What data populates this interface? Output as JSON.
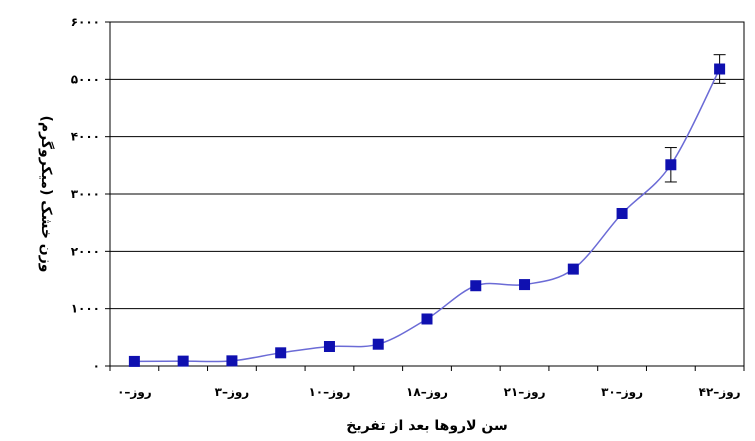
{
  "chart_data": {
    "type": "line",
    "xlabel": "سن لاروها بعد از تفریخ",
    "ylabel": "وزن خشک (میکروگرم)",
    "title": "",
    "ylim": [
      0,
      6000
    ],
    "yticks": [
      0,
      1000,
      2000,
      3000,
      4000,
      5000,
      6000
    ],
    "ytick_labels": [
      "۰",
      "۱۰۰۰",
      "۲۰۰۰",
      "۳۰۰۰",
      "۴۰۰۰",
      "۵۰۰۰",
      "۶۰۰۰"
    ],
    "x_tick_labels": [
      "روز–۰",
      "روز–۳",
      "روز–۱۰",
      "روز–۱۸",
      "روز–۲۱",
      "روز–۳۰",
      "روز–۴۲"
    ],
    "x_tick_points": [
      0,
      2,
      4,
      6,
      8,
      10,
      12
    ],
    "grid": {
      "horizontal": true,
      "vertical": false
    },
    "series": [
      {
        "color": "#6b6bd6",
        "marker_color": "#0f10b0",
        "points": [
          {
            "x": 0,
            "y": 80
          },
          {
            "x": 1,
            "y": 85
          },
          {
            "x": 2,
            "y": 90
          },
          {
            "x": 3,
            "y": 230
          },
          {
            "x": 4,
            "y": 340
          },
          {
            "x": 5,
            "y": 380
          },
          {
            "x": 6,
            "y": 820
          },
          {
            "x": 7,
            "y": 1400
          },
          {
            "x": 8,
            "y": 1420
          },
          {
            "x": 9,
            "y": 1690
          },
          {
            "x": 10,
            "y": 2660
          },
          {
            "x": 11,
            "y": 3510,
            "err": 300
          },
          {
            "x": 12,
            "y": 5180,
            "err": 250
          }
        ]
      }
    ]
  }
}
